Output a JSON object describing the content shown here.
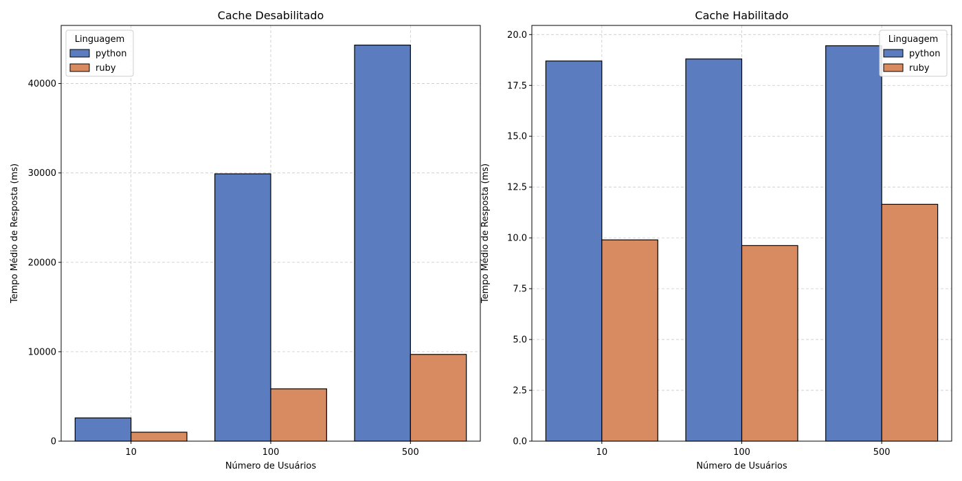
{
  "chart_data": [
    {
      "type": "bar",
      "title": "Cache Desabilitado",
      "xlabel": "Número de Usuários",
      "ylabel": "Tempo Médio de Resposta (ms)",
      "categories": [
        "10",
        "100",
        "500"
      ],
      "series": [
        {
          "name": "python",
          "values": [
            2600,
            29900,
            44300
          ]
        },
        {
          "name": "ruby",
          "values": [
            1000,
            5850,
            9700
          ]
        }
      ],
      "ylim": [
        0,
        46500
      ],
      "yticks": [
        0,
        10000,
        20000,
        30000,
        40000
      ],
      "ytick_labels": [
        "0",
        "10000",
        "20000",
        "30000",
        "40000"
      ],
      "grid": true,
      "legend": {
        "title": "Linguagem",
        "position": "top-left"
      }
    },
    {
      "type": "bar",
      "title": "Cache Habilitado",
      "xlabel": "Número de Usuários",
      "ylabel": "Tempo Médio de Resposta (ms)",
      "categories": [
        "10",
        "100",
        "500"
      ],
      "series": [
        {
          "name": "python",
          "values": [
            18.7,
            18.8,
            19.45
          ]
        },
        {
          "name": "ruby",
          "values": [
            9.9,
            9.62,
            11.65
          ]
        }
      ],
      "ylim": [
        0,
        20.45
      ],
      "yticks": [
        0,
        2.5,
        5,
        7.5,
        10,
        12.5,
        15,
        17.5,
        20
      ],
      "ytick_labels": [
        "0.0",
        "2.5",
        "5.0",
        "7.5",
        "10.0",
        "12.5",
        "15.0",
        "17.5",
        "20.0"
      ],
      "grid": true,
      "legend": {
        "title": "Linguagem",
        "position": "top-right"
      }
    }
  ],
  "colors": {
    "python": "#5b7dc0",
    "ruby": "#d88b60"
  }
}
